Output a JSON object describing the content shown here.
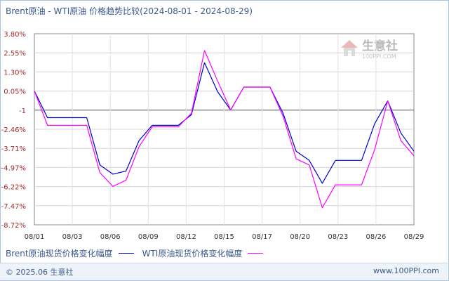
{
  "chart_data": {
    "type": "line",
    "title": "Brent原油 - WTI原油 价格趋势比较(2024-08-01 - 2024-08-29)",
    "x_tick_labels": [
      "08/01",
      "08/03",
      "08/06",
      "08/09",
      "08/12",
      "08/15",
      "08/17",
      "08/20",
      "08/23",
      "08/26",
      "08/29"
    ],
    "y_tick_labels": [
      "3.80%",
      "2.55%",
      "1.30%",
      "0.05%",
      "-1",
      "-2.46%",
      "-3.71%",
      "-4.97%",
      "-6.22%",
      "-7.47%",
      "-8.72%"
    ],
    "ylim": [
      -8.72,
      3.8
    ],
    "grid": true,
    "legend_position": "bottom",
    "series": [
      {
        "name": "Brent原油现货价格变化幅度",
        "color": "#0000cc",
        "values": [
          0.05,
          -1.7,
          -1.7,
          -1.7,
          -1.7,
          -4.8,
          -5.4,
          -5.2,
          -3.2,
          -2.2,
          -2.2,
          -2.2,
          -1.5,
          1.9,
          0.0,
          -1.2,
          0.3,
          0.3,
          0.3,
          -1.4,
          -3.9,
          -4.5,
          -6.0,
          -4.5,
          -4.5,
          -4.5,
          -2.1,
          -0.6,
          -2.7,
          -3.9
        ]
      },
      {
        "name": "WTI原油现货价格变化幅度",
        "color": "#ff00ff",
        "values": [
          0.05,
          -2.2,
          -2.2,
          -2.2,
          -2.2,
          -5.3,
          -6.2,
          -5.8,
          -3.6,
          -2.3,
          -2.3,
          -2.3,
          -1.4,
          2.7,
          0.7,
          -1.2,
          0.3,
          0.3,
          0.3,
          -1.6,
          -4.4,
          -4.8,
          -7.6,
          -6.1,
          -6.1,
          -6.1,
          -3.8,
          -0.6,
          -3.2,
          -4.2
        ]
      }
    ]
  },
  "legend": {
    "brent_label": "Brent原油现货价格变化幅度",
    "wti_label": "WTI原油现货价格变化幅度"
  },
  "watermark": {
    "name": "生意社",
    "url": "100PPI.COM"
  },
  "footer": {
    "copyright": "© 2025.06 生意社",
    "site": "www.100PPI.com"
  },
  "colors": {
    "axis_text": "#a52a2a",
    "grid": "#cfcfcf",
    "frame": "#a9c4e0"
  }
}
